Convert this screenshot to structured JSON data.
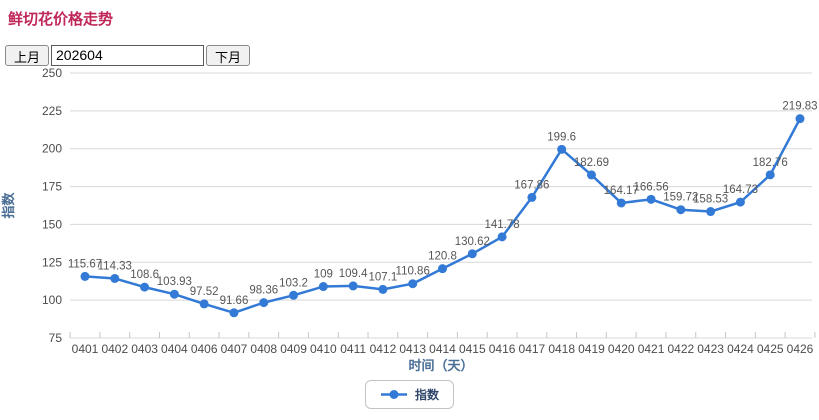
{
  "page": {
    "title": "鲜切花价格走势"
  },
  "toolbar": {
    "prev_label": "上月",
    "period_value": "202604",
    "next_label": "下月"
  },
  "chart_data": {
    "type": "line",
    "title": "鲜切花价格走势",
    "xlabel": "时间（天）",
    "ylabel": "指数",
    "ylim": [
      75,
      250
    ],
    "ytick_step": 25,
    "grid": true,
    "legend_position": "bottom",
    "categories": [
      "0401",
      "0402",
      "0403",
      "0404",
      "0406",
      "0407",
      "0408",
      "0409",
      "0410",
      "0411",
      "0412",
      "0413",
      "0414",
      "0415",
      "0416",
      "0417",
      "0418",
      "0419",
      "0420",
      "0421",
      "0422",
      "0423",
      "0424",
      "0425",
      "0426"
    ],
    "series": [
      {
        "name": "指数",
        "values": [
          115.67,
          114.33,
          108.6,
          103.93,
          97.52,
          91.66,
          98.36,
          103.2,
          109,
          109.4,
          107.1,
          110.86,
          120.8,
          130.62,
          141.78,
          167.86,
          199.6,
          182.69,
          164.17,
          166.56,
          159.72,
          158.53,
          164.73,
          182.76,
          219.83
        ],
        "point_labels": [
          "115.67",
          "114.33",
          "108.6",
          "103.93",
          "97.52",
          "91.66",
          "98.36",
          "103.2",
          "109",
          "109.4",
          "107.1",
          "110.86",
          "120.8",
          "130.62",
          "141.78",
          "167.86",
          "199.6",
          "182.69",
          "164.17",
          "166.56",
          "159.72",
          "158.53",
          "164.73",
          "182.76",
          "219.83"
        ]
      }
    ]
  },
  "colors": {
    "title": "#c02759",
    "line": "#337ad6",
    "marker": "#337ad6",
    "grid": "#d8d8d8",
    "axis_tick": "#c6c6c6",
    "tick_label": "#4c4c4c",
    "data_label": "#565656",
    "axis_title": "#4a6e96",
    "legend_text": "#32486b",
    "legend_border": "#c3c3c3"
  }
}
